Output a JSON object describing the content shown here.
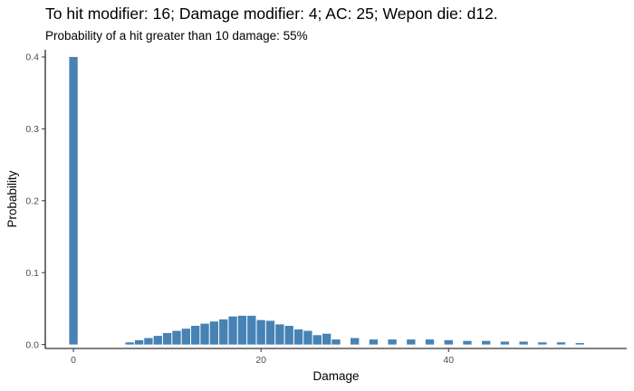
{
  "chart_data": {
    "type": "bar",
    "title": "To hit modifier: 16; Damage modifier: 4; AC: 25; Wepon die: d12.",
    "subtitle": "Probability of a hit greater than 10 damage: 55%",
    "xlabel": "Damage",
    "ylabel": "Probability",
    "xlim": [
      -3,
      59
    ],
    "ylim": [
      -0.0055,
      0.41
    ],
    "x_ticks": [
      0,
      20,
      40
    ],
    "x_tick_labels": [
      "0",
      "20",
      "40"
    ],
    "y_ticks": [
      0.0,
      0.1,
      0.2,
      0.3,
      0.4
    ],
    "y_tick_labels": [
      "0.0",
      "0.1",
      "0.2",
      "0.3",
      "0.4"
    ],
    "grid": false,
    "legend": "none",
    "bar_color": "#4682B4",
    "x": [
      0,
      6,
      7,
      8,
      9,
      10,
      11,
      12,
      13,
      14,
      15,
      16,
      17,
      18,
      19,
      20,
      21,
      22,
      23,
      24,
      25,
      26,
      27,
      28,
      30,
      32,
      34,
      36,
      38,
      40,
      42,
      44,
      46,
      48,
      50,
      52,
      54
    ],
    "values": [
      0.4,
      0.003,
      0.006,
      0.009,
      0.012,
      0.016,
      0.019,
      0.022,
      0.026,
      0.029,
      0.032,
      0.035,
      0.039,
      0.04,
      0.04,
      0.034,
      0.033,
      0.028,
      0.026,
      0.021,
      0.019,
      0.013,
      0.015,
      0.007,
      0.009,
      0.007,
      0.007,
      0.007,
      0.007,
      0.006,
      0.005,
      0.005,
      0.004,
      0.004,
      0.003,
      0.003,
      0.002
    ]
  }
}
